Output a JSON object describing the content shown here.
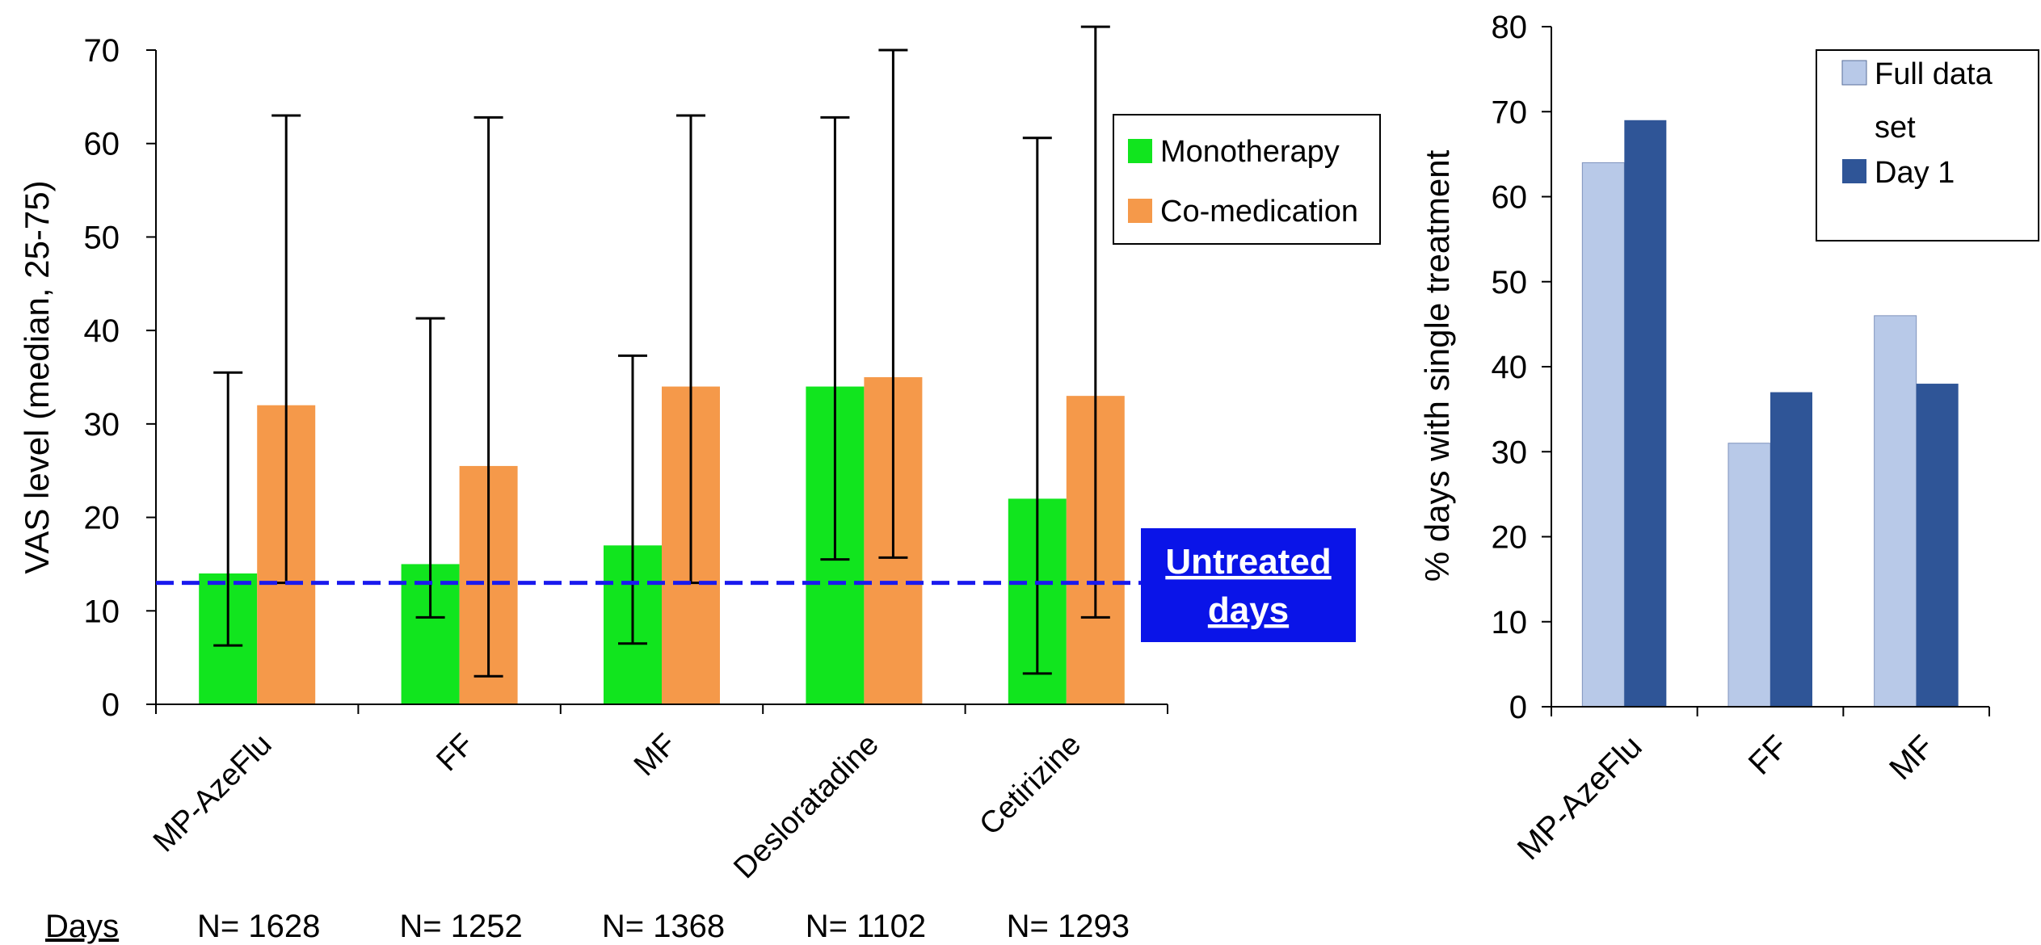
{
  "chart_data": [
    {
      "type": "bar",
      "ylabel": "VAS level (median, 25-75)",
      "ylim": [
        0,
        70
      ],
      "yticks": [
        0,
        10,
        20,
        30,
        40,
        50,
        60,
        70
      ],
      "categories": [
        "MP-AzeFlu",
        "FF",
        "MF",
        "Desloratadine",
        "Cetirizine"
      ],
      "series": [
        {
          "name": "Monotherapy",
          "color": "#11e51e",
          "values": [
            14,
            15,
            17,
            34,
            22
          ],
          "error_low": [
            6.3,
            9.3,
            6.5,
            15.5,
            3.3
          ],
          "error_high": [
            35.5,
            41.3,
            37.3,
            62.8,
            60.6
          ]
        },
        {
          "name": "Co-medication",
          "color": "#f5994a",
          "values": [
            32,
            25.5,
            34,
            35,
            33
          ],
          "error_low": [
            13,
            3,
            13,
            15.7,
            9.3
          ],
          "error_high": [
            63,
            62.8,
            63,
            70,
            72.5
          ]
        }
      ],
      "reference_line": {
        "value": 13,
        "color": "#1a1aee",
        "label_line1": "Untreated",
        "label_line2": "days"
      },
      "days_label": "Days",
      "n_labels": [
        "N= 1628",
        "N= 1252",
        "N= 1368",
        "N= 1102",
        "N= 1293"
      ],
      "legend_position": "top-right"
    },
    {
      "type": "bar",
      "ylabel": "% days with single treatment",
      "ylim": [
        0,
        80
      ],
      "yticks": [
        0,
        10,
        20,
        30,
        40,
        50,
        60,
        70,
        80
      ],
      "categories": [
        "MP-AzeFlu",
        "FF",
        "MF"
      ],
      "series": [
        {
          "name": "Full data set",
          "legend_line1": "Full data",
          "legend_line2": "set",
          "color": "#b8c9e8",
          "values": [
            64,
            31,
            46
          ]
        },
        {
          "name": "Day 1",
          "color": "#2f5597",
          "values": [
            69,
            37,
            38
          ]
        }
      ],
      "legend_position": "top-right"
    }
  ]
}
